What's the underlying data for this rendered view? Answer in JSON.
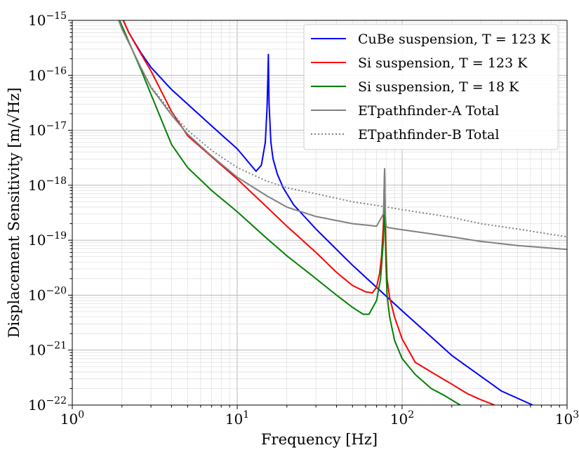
{
  "chart_data": {
    "type": "line",
    "title": "",
    "xlabel": "Frequency [Hz]",
    "ylabel": "Displacement Sensitivity [m/√Hz]",
    "xscale": "log",
    "yscale": "log",
    "xlim": [
      1,
      1000
    ],
    "ylim": [
      1e-22,
      1e-15
    ],
    "grid": "major and minor",
    "legend_position": "top-right",
    "x_ticks": [
      {
        "value": 1,
        "base": "10",
        "exp": "0"
      },
      {
        "value": 10,
        "base": "10",
        "exp": "1"
      },
      {
        "value": 100,
        "base": "10",
        "exp": "2"
      },
      {
        "value": 1000,
        "base": "10",
        "exp": "3"
      }
    ],
    "y_ticks": [
      {
        "value": 1e-15,
        "base": "10",
        "exp": "−15"
      },
      {
        "value": 1e-16,
        "base": "10",
        "exp": "−16"
      },
      {
        "value": 1e-17,
        "base": "10",
        "exp": "−17"
      },
      {
        "value": 1e-18,
        "base": "10",
        "exp": "−18"
      },
      {
        "value": 1e-19,
        "base": "10",
        "exp": "−19"
      },
      {
        "value": 1e-20,
        "base": "10",
        "exp": "−20"
      },
      {
        "value": 1e-21,
        "base": "10",
        "exp": "−21"
      },
      {
        "value": 1e-22,
        "base": "10",
        "exp": "−22"
      }
    ],
    "series": [
      {
        "name": "CuBe suspension, T = 123 K",
        "color": "#0000ff",
        "dash": "solid",
        "x": [
          1.9,
          2.2,
          2.6,
          3.0,
          4.0,
          5.0,
          7.0,
          10.0,
          12.0,
          13.0,
          14.0,
          14.8,
          15.2,
          15.45,
          15.6,
          16.0,
          16.5,
          17.5,
          19.0,
          22.0,
          30.0,
          50.0,
          100.0,
          200.0,
          400.0,
          619.0
        ],
        "y": [
          1.6e-15,
          6e-16,
          2.6e-16,
          1.4e-16,
          5.5e-17,
          3e-17,
          1.2e-17,
          4.6e-18,
          2.4e-18,
          1.8e-18,
          2.3e-18,
          6e-18,
          3e-17,
          2.4e-16,
          3e-17,
          6e-18,
          3e-18,
          1.6e-18,
          9e-19,
          4.4e-19,
          1.6e-19,
          3.5e-20,
          5.2e-21,
          8e-22,
          1.8e-22,
          1e-22
        ]
      },
      {
        "name": "Si suspension, T = 123 K",
        "color": "#ff0000",
        "dash": "solid",
        "x": [
          1.9,
          2.2,
          2.6,
          3.0,
          4.0,
          5.0,
          7.0,
          10.0,
          15.0,
          20.0,
          30.0,
          40.0,
          50.0,
          60.0,
          66.0,
          70.0,
          73.0,
          75.0,
          77.0,
          78.3,
          79.0,
          79.8,
          81.0,
          84.0,
          90.0,
          100.0,
          120.0,
          150.0,
          200.0,
          250.0,
          300.0,
          364.0
        ],
        "y": [
          1.6e-15,
          6e-16,
          2.5e-16,
          1.2e-16,
          2.2e-17,
          8e-18,
          3.3e-18,
          1.3e-18,
          4.1e-19,
          1.8e-19,
          6e-20,
          2.6e-20,
          1.5e-20,
          1.15e-20,
          1.1e-20,
          1.4e-20,
          2.5e-20,
          5e-20,
          2e-19,
          1.8e-18,
          3e-19,
          7e-20,
          2e-20,
          9e-21,
          4e-21,
          1.6e-21,
          6e-22,
          4e-22,
          2.4e-22,
          1.6e-22,
          1.25e-22,
          1e-22
        ]
      },
      {
        "name": "Si suspension, T = 18 K",
        "color": "#008000",
        "dash": "solid",
        "x": [
          1.8,
          2.0,
          2.3,
          2.6,
          3.0,
          4.0,
          5.0,
          7.0,
          10.0,
          15.0,
          20.0,
          30.0,
          40.0,
          50.0,
          58.0,
          63.0,
          70.0,
          74.0,
          77.0,
          78.3,
          79.0,
          79.8,
          81.0,
          84.0,
          90.0,
          100.0,
          120.0,
          150.0,
          180.0,
          225.0
        ],
        "y": [
          1.6e-15,
          8e-16,
          3e-16,
          1.3e-16,
          4.5e-17,
          5.5e-18,
          2.1e-18,
          8e-19,
          3.3e-19,
          1.1e-19,
          5.2e-20,
          2e-20,
          1e-20,
          6e-21,
          4.5e-21,
          4.5e-21,
          8e-21,
          2e-20,
          1e-19,
          8e-19,
          1.5e-19,
          3.5e-20,
          1e-20,
          4e-21,
          1.5e-21,
          7e-22,
          3.6e-22,
          2e-22,
          1.5e-22,
          1e-22
        ]
      },
      {
        "name": "ETpathfinder-A Total",
        "color": "#808080",
        "dash": "solid",
        "x": [
          1.8,
          2.0,
          2.3,
          2.6,
          3.0,
          4.0,
          5.0,
          7.0,
          10.0,
          15.0,
          20.0,
          30.0,
          50.0,
          70.0,
          77.0,
          78.3,
          79.0,
          80.0,
          82.0,
          100.0,
          200.0,
          300.0,
          500.0,
          1000.0
        ],
        "y": [
          1.6e-15,
          7e-16,
          3e-16,
          1.4e-16,
          6e-17,
          1.9e-17,
          8.5e-18,
          3.4e-18,
          1.4e-18,
          6.5e-19,
          4e-19,
          2.7e-19,
          2e-19,
          1.8e-19,
          3e-19,
          2e-18,
          3e-19,
          1.8e-19,
          1.7e-19,
          1.55e-19,
          1.15e-19,
          9.5e-20,
          8e-20,
          6.8e-20
        ]
      },
      {
        "name": "ETpathfinder-B Total",
        "color": "#808080",
        "dash": "dotted",
        "x": [
          1.8,
          2.0,
          2.3,
          2.6,
          3.0,
          4.0,
          5.0,
          7.0,
          10.0,
          15.0,
          20.0,
          30.0,
          50.0,
          70.0,
          100.0,
          200.0,
          300.0,
          500.0,
          1000.0
        ],
        "y": [
          1.6e-15,
          7e-16,
          3e-16,
          1.4e-16,
          6.2e-17,
          2.1e-17,
          1e-17,
          4.3e-18,
          2.1e-18,
          1.2e-18,
          9e-19,
          7e-19,
          5e-19,
          4.3e-19,
          3.6e-19,
          2.6e-19,
          2e-19,
          1.6e-19,
          1.15e-19
        ]
      }
    ]
  }
}
